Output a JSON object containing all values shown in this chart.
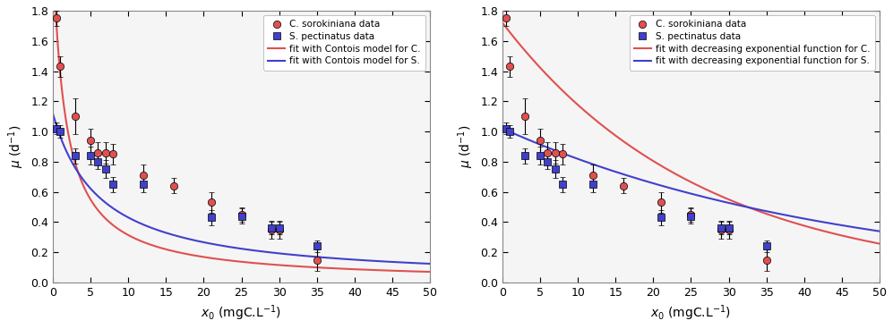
{
  "C_x": [
    0.5,
    1.0,
    3.0,
    5.0,
    6.0,
    7.0,
    8.0,
    12.0,
    16.0,
    21.0,
    25.0,
    29.0,
    30.0,
    35.0
  ],
  "C_y": [
    1.75,
    1.43,
    1.1,
    0.94,
    0.86,
    0.86,
    0.85,
    0.71,
    0.64,
    0.53,
    0.45,
    0.35,
    0.35,
    0.15
  ],
  "C_yerr": [
    0.05,
    0.07,
    0.12,
    0.08,
    0.07,
    0.07,
    0.07,
    0.07,
    0.05,
    0.07,
    0.05,
    0.06,
    0.06,
    0.07
  ],
  "S_x": [
    0.5,
    1.0,
    3.0,
    5.0,
    6.0,
    7.0,
    8.0,
    12.0,
    21.0,
    25.0,
    29.0,
    30.0,
    35.0
  ],
  "S_y": [
    1.02,
    1.0,
    0.84,
    0.84,
    0.8,
    0.75,
    0.65,
    0.65,
    0.43,
    0.44,
    0.36,
    0.36,
    0.24
  ],
  "S_yerr": [
    0.04,
    0.04,
    0.05,
    0.06,
    0.05,
    0.06,
    0.05,
    0.05,
    0.05,
    0.05,
    0.04,
    0.04,
    0.04
  ],
  "contois_C_mumax": 2.2,
  "contois_C_K": 0.6,
  "contois_S_mumax": 1.12,
  "contois_S_K": 0.16,
  "exp_C_a": 1.72,
  "exp_C_b": 0.038,
  "exp_S_a": 1.02,
  "exp_S_b": 0.022,
  "xlim": [
    0,
    50
  ],
  "ylim": [
    0,
    1.8
  ],
  "yticks": [
    0,
    0.2,
    0.4,
    0.6,
    0.8,
    1.0,
    1.2,
    1.4,
    1.6,
    1.8
  ],
  "xticks": [
    0,
    5,
    10,
    15,
    20,
    25,
    30,
    35,
    40,
    45,
    50
  ],
  "ylabel": "μ (d⁻¹)",
  "xlabel": "x₀ (mgC.L⁻¹)",
  "legend1_entries": [
    "C. sorokiniana data",
    "S. pectinatus data",
    "fit with Contois model for C.",
    "fit with Contois model for S."
  ],
  "legend2_entries": [
    "C. sorokiniana data",
    "S. pectinatus data",
    "fit with decreasing exponential function for C.",
    "fit with decreasing exponential function for S."
  ],
  "red_color": "#e05050",
  "blue_color": "#4040cc",
  "marker_red": "o",
  "marker_blue": "s",
  "bg_color": "#f5f5f5"
}
